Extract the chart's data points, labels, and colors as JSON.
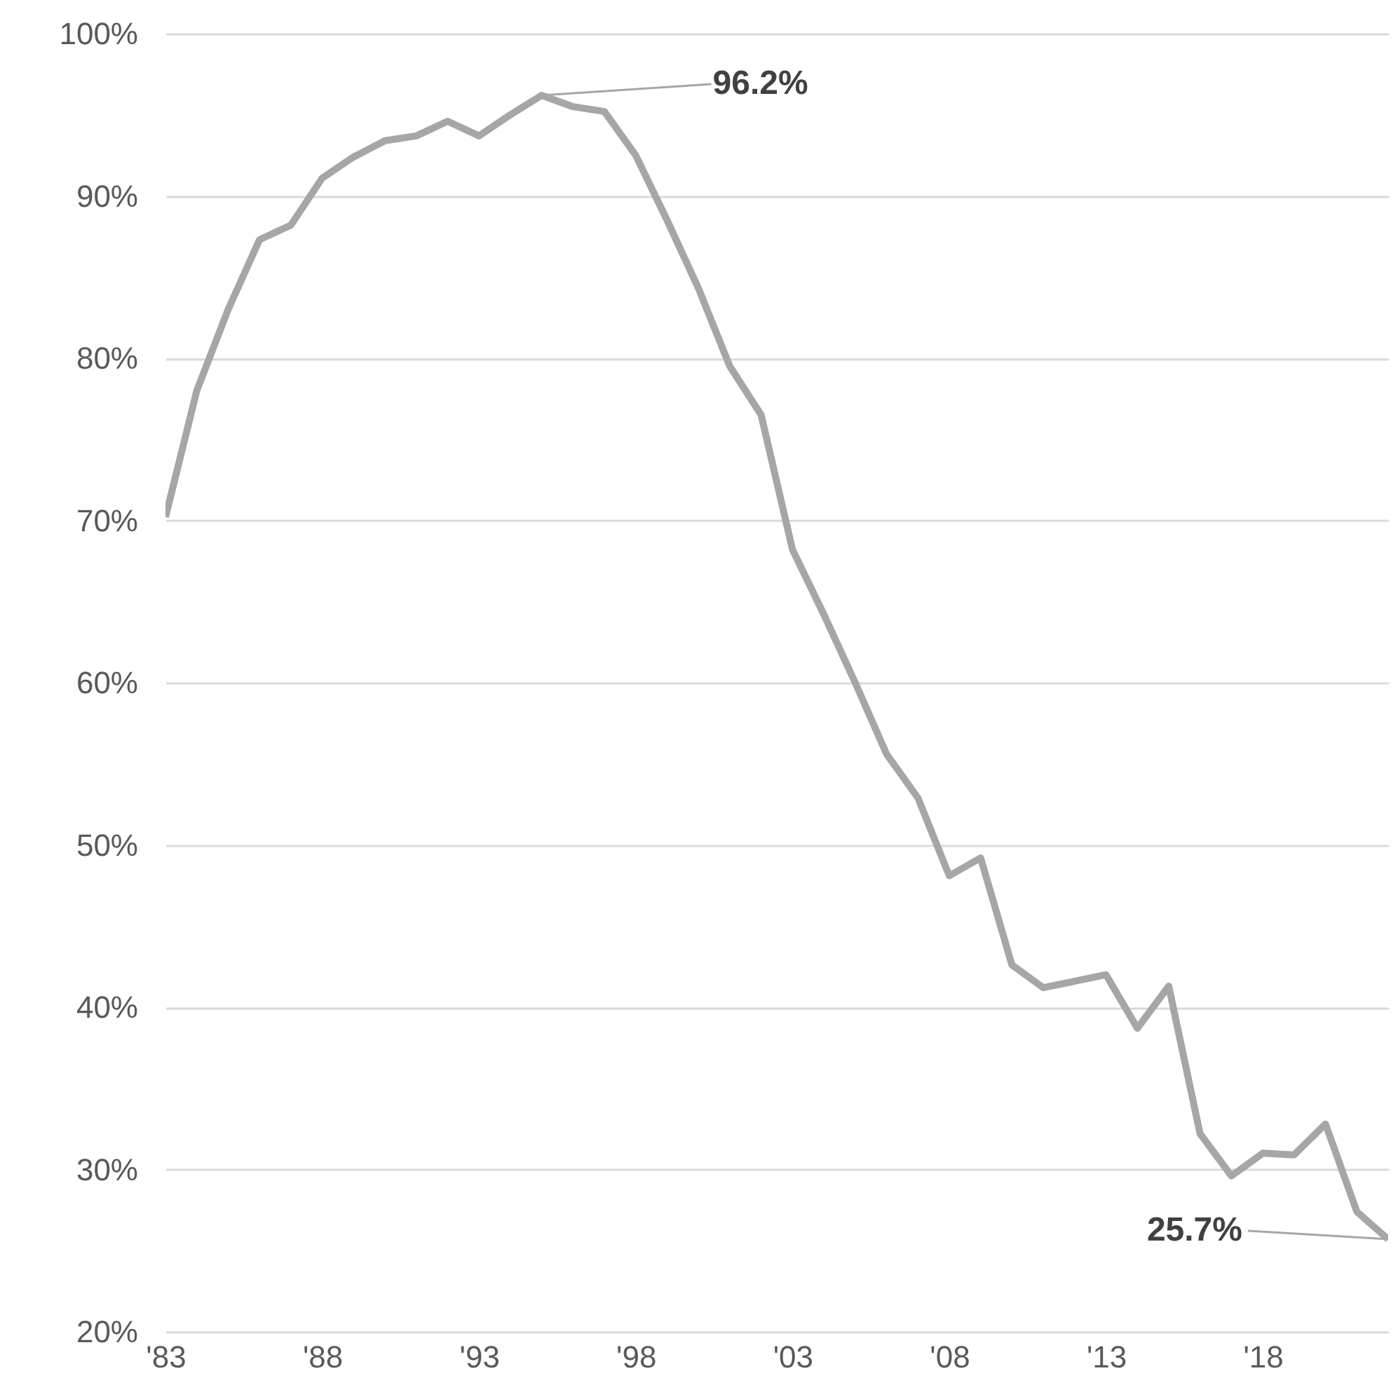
{
  "chart_data": {
    "type": "line",
    "x": [
      1983,
      1984,
      1985,
      1986,
      1987,
      1988,
      1989,
      1990,
      1991,
      1992,
      1993,
      1994,
      1995,
      1996,
      1997,
      1998,
      1999,
      2000,
      2001,
      2002,
      2003,
      2004,
      2005,
      2006,
      2007,
      2008,
      2009,
      2010,
      2011,
      2012,
      2013,
      2014,
      2015,
      2016,
      2017,
      2018,
      2019,
      2020,
      2021,
      2022
    ],
    "series": [
      {
        "color": "#a6a6a6",
        "values": [
          70.2,
          78.0,
          83.0,
          87.3,
          88.2,
          91.1,
          92.4,
          93.4,
          93.7,
          94.6,
          93.7,
          95.0,
          96.2,
          95.5,
          95.2,
          92.5,
          88.5,
          84.3,
          79.5,
          76.5,
          68.2,
          64.2,
          60.0,
          55.6,
          52.9,
          48.1,
          49.2,
          42.6,
          41.2,
          41.6,
          42.0,
          38.7,
          41.3,
          32.2,
          29.6,
          31.0,
          30.9,
          32.8,
          27.4,
          25.7
        ]
      }
    ],
    "xlim": [
      1983,
      2022
    ],
    "xticks": [
      {
        "value": 1983,
        "label": "'83"
      },
      {
        "value": 1988,
        "label": "'88"
      },
      {
        "value": 1993,
        "label": "'93"
      },
      {
        "value": 1998,
        "label": "'98"
      },
      {
        "value": 2003,
        "label": "'03"
      },
      {
        "value": 2008,
        "label": "'08"
      },
      {
        "value": 2013,
        "label": "'13"
      },
      {
        "value": 2018,
        "label": "'18"
      }
    ],
    "ylim": [
      20,
      100
    ],
    "yticks": [
      {
        "value": 20,
        "label": "20%"
      },
      {
        "value": 30,
        "label": "30%"
      },
      {
        "value": 40,
        "label": "40%"
      },
      {
        "value": 50,
        "label": "50%"
      },
      {
        "value": 60,
        "label": "60%"
      },
      {
        "value": 70,
        "label": "70%"
      },
      {
        "value": 80,
        "label": "80%"
      },
      {
        "value": 90,
        "label": "90%"
      },
      {
        "value": 100,
        "label": "100%"
      }
    ],
    "annotations": [
      {
        "text": "96.2%",
        "x": 1995,
        "y": 96.2
      },
      "25.7%"
    ],
    "grid": "y",
    "marker": "none",
    "line_style": "solid"
  }
}
